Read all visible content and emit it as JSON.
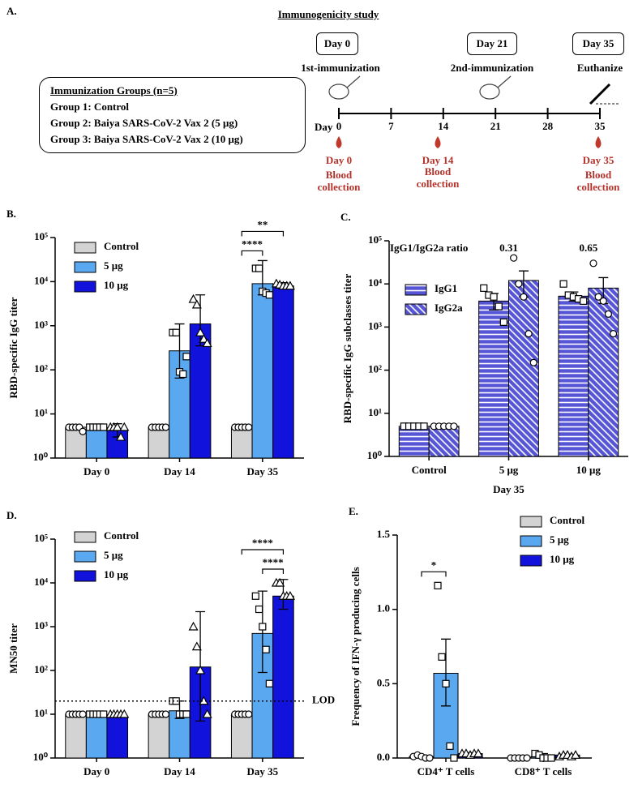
{
  "panel_a": {
    "label": "A.",
    "title": "Immunogenicity study",
    "groups_title": "Immunization Groups (n=5)",
    "groups": [
      "Group 1: Control",
      "Group 2: Baiya SARS-CoV-2 Vax 2 (5 μg)",
      "Group 3: Baiya SARS-CoV-2 Vax 2 (10 μg)"
    ],
    "events": [
      {
        "day": "Day 0",
        "label": "1st-immunization"
      },
      {
        "day": "Day 21",
        "label": "2nd-immunization"
      },
      {
        "day": "Day 35",
        "label": "Euthanize"
      }
    ],
    "timeline_label": "Day",
    "timeline_days": [
      0,
      7,
      14,
      21,
      28,
      35
    ],
    "blood": [
      {
        "day": "Day 0",
        "label": "Blood collection"
      },
      {
        "day": "Day 14",
        "label": "Blood collection"
      },
      {
        "day": "Day 35",
        "label": "Blood collection"
      }
    ]
  },
  "chart_data": [
    {
      "type": "bar",
      "panel_label": "B.",
      "ylabel": "RBD-specific IgG titer",
      "log_scale": true,
      "legend": "upper left",
      "categories": [
        "Day 0",
        "Day 14",
        "Day 35"
      ],
      "ylim": [
        1,
        100000
      ],
      "yticks": [
        {
          "value": 1,
          "label": "10⁰"
        },
        {
          "value": 10,
          "label": "10¹"
        },
        {
          "value": 100,
          "label": "10²"
        },
        {
          "value": 1000,
          "label": "10³"
        },
        {
          "value": 10000,
          "label": "10⁴"
        },
        {
          "value": 100000,
          "label": "10⁵"
        }
      ],
      "series": [
        {
          "name": "Control",
          "color": "#d3d3d3",
          "marker": "circle",
          "values": [
            5,
            5,
            5
          ],
          "error_low": [
            4.5,
            5,
            4.8
          ],
          "error_high": [
            5.5,
            5,
            5.3
          ],
          "points": [
            [
              5,
              5,
              5,
              5,
              4
            ],
            [
              5,
              5,
              5,
              5,
              5
            ],
            [
              5,
              5,
              5,
              5,
              5
            ]
          ]
        },
        {
          "name": "5 μg",
          "color": "#5aa9f0",
          "marker": "square",
          "values": [
            5,
            270,
            9000
          ],
          "error_low": [
            5,
            65,
            5000
          ],
          "error_high": [
            5,
            1100,
            30000
          ],
          "points": [
            [
              5,
              5,
              5,
              5,
              5
            ],
            [
              700,
              700,
              90,
              80,
              200
            ],
            [
              20000,
              20000,
              6000,
              5500,
              5000
            ]
          ]
        },
        {
          "name": "10 μg",
          "color": "#1212dd",
          "marker": "triangle",
          "values": [
            4.5,
            1100,
            8000
          ],
          "error_low": [
            3,
            350,
            7000
          ],
          "error_high": [
            6,
            5000,
            9500
          ],
          "points": [
            [
              5,
              5,
              5,
              3,
              5
            ],
            [
              4000,
              3000,
              700,
              500,
              400
            ],
            [
              9000,
              8500,
              8000,
              8000,
              8000
            ]
          ]
        }
      ],
      "significance": [
        {
          "label": "****",
          "category": "Day 35",
          "from": "Control",
          "to": "5 μg"
        },
        {
          "label": "**",
          "category": "Day 35",
          "from": "Control",
          "to": "10 μg"
        }
      ]
    },
    {
      "type": "bar",
      "panel_label": "C.",
      "ylabel": "RBD-specific IgG subclasses titer",
      "xlabel": "Day 35",
      "log_scale": true,
      "legend": "upper left",
      "categories": [
        "Control",
        "5 μg",
        "10 μg"
      ],
      "ylim": [
        1,
        100000
      ],
      "yticks": [
        {
          "value": 1,
          "label": "10⁰"
        },
        {
          "value": 10,
          "label": "10¹"
        },
        {
          "value": 100,
          "label": "10²"
        },
        {
          "value": 1000,
          "label": "10³"
        },
        {
          "value": 10000,
          "label": "10⁴"
        },
        {
          "value": 100000,
          "label": "10⁵"
        }
      ],
      "ratio_label": "IgG1/IgG2a ratio",
      "ratios": [
        null,
        0.31,
        0.65
      ],
      "series": [
        {
          "name": "IgG1",
          "color": "#5555d5",
          "pattern": "horizontal",
          "marker": "square",
          "values": [
            5,
            4000,
            5200
          ],
          "error_low": [
            5,
            2500,
            4000
          ],
          "error_high": [
            5,
            6000,
            6500
          ],
          "points": [
            [
              5,
              5,
              5,
              5,
              5
            ],
            [
              8000,
              5500,
              5000,
              3000,
              1300
            ],
            [
              10000,
              5500,
              5000,
              4500,
              4000
            ]
          ]
        },
        {
          "name": "IgG2a",
          "color": "#5555d5",
          "pattern": "diagonal",
          "marker": "circle",
          "values": [
            5,
            12000,
            8000
          ],
          "error_low": [
            5,
            5000,
            3500
          ],
          "error_high": [
            5,
            20000,
            14000
          ],
          "points": [
            [
              5,
              5,
              5,
              5,
              5
            ],
            [
              40000,
              10000,
              5000,
              700,
              150
            ],
            [
              30000,
              5000,
              4000,
              2000,
              700
            ]
          ]
        }
      ]
    },
    {
      "type": "bar",
      "panel_label": "D.",
      "ylabel": "MN50 titer",
      "log_scale": true,
      "legend": "upper left",
      "categories": [
        "Day 0",
        "Day 14",
        "Day 35"
      ],
      "ylim": [
        1,
        100000
      ],
      "yticks": [
        {
          "value": 1,
          "label": "10⁰"
        },
        {
          "value": 10,
          "label": "10¹"
        },
        {
          "value": 100,
          "label": "10²"
        },
        {
          "value": 1000,
          "label": "10³"
        },
        {
          "value": 10000,
          "label": "10⁴"
        },
        {
          "value": 100000,
          "label": "10⁵"
        }
      ],
      "lod": {
        "value": 20,
        "label": "LOD"
      },
      "series": [
        {
          "name": "Control",
          "color": "#d3d3d3",
          "marker": "circle",
          "values": [
            10,
            10,
            10
          ],
          "error_low": [
            10,
            10,
            10
          ],
          "error_high": [
            10,
            10,
            11
          ],
          "points": [
            [
              10,
              10,
              10,
              10,
              10
            ],
            [
              10,
              10,
              10,
              10,
              10
            ],
            [
              10,
              10,
              10,
              10,
              10
            ]
          ]
        },
        {
          "name": "5 μg",
          "color": "#5aa9f0",
          "marker": "square",
          "values": [
            10,
            12,
            700
          ],
          "error_low": [
            9,
            8,
            90
          ],
          "error_high": [
            11,
            20,
            6500
          ],
          "points": [
            [
              10,
              10,
              10,
              10,
              10
            ],
            [
              20,
              20,
              10,
              10,
              10
            ],
            [
              5000,
              2500,
              1000,
              300,
              50
            ]
          ]
        },
        {
          "name": "10 μg",
          "color": "#1212dd",
          "marker": "triangle",
          "values": [
            9,
            120,
            5000
          ],
          "error_low": [
            9,
            7,
            2500
          ],
          "error_high": [
            10,
            2200,
            12000
          ],
          "points": [
            [
              10,
              10,
              10,
              10,
              10
            ],
            [
              1000,
              350,
              100,
              20,
              10
            ],
            [
              10000,
              10000,
              5000,
              5000,
              5000
            ]
          ]
        }
      ],
      "significance": [
        {
          "label": "****",
          "category": "Day 35",
          "from": "5 μg",
          "to": "10 μg"
        },
        {
          "label": "****",
          "category": "Day 35",
          "from": "Control",
          "to": "10 μg"
        }
      ]
    },
    {
      "type": "bar",
      "panel_label": "E.",
      "ylabel": "Frequency of IFN-γ producing cells",
      "log_scale": false,
      "legend": "upper right",
      "categories": [
        "CD4⁺ T cells",
        "CD8⁺ T cells"
      ],
      "ylim": [
        0,
        1.5
      ],
      "yticks": [
        {
          "value": 0,
          "label": "0.0"
        },
        {
          "value": 0.5,
          "label": "0.5"
        },
        {
          "value": 1,
          "label": "1.0"
        },
        {
          "value": 1.5,
          "label": "1.5"
        }
      ],
      "series": [
        {
          "name": "Control",
          "color": "#d3d3d3",
          "marker": "circle",
          "values": [
            0.01,
            0
          ],
          "error_low": [
            0.005,
            0
          ],
          "error_high": [
            0.015,
            0.005
          ],
          "points": [
            [
              0.01,
              0.02,
              0.01,
              0,
              0
            ],
            [
              0,
              0,
              0,
              0,
              0
            ]
          ]
        },
        {
          "name": "5 μg",
          "color": "#5aa9f0",
          "marker": "square",
          "values": [
            0.57,
            0.01
          ],
          "error_low": [
            0.35,
            0
          ],
          "error_high": [
            0.8,
            0.03
          ],
          "points": [
            [
              1.16,
              0.68,
              0.5,
              0.08,
              0
            ],
            [
              0.03,
              0.02,
              0,
              0,
              0
            ]
          ]
        },
        {
          "name": "10 μg",
          "color": "#1212dd",
          "marker": "triangle",
          "values": [
            0.03,
            0.02
          ],
          "error_low": [
            0.025,
            0.015
          ],
          "error_high": [
            0.035,
            0.025
          ],
          "points": [
            [
              0.03,
              0.03,
              0.02,
              0.03,
              0.03
            ],
            [
              0.01,
              0.02,
              0.02,
              0.01,
              0.02
            ]
          ]
        }
      ],
      "significance": [
        {
          "label": "*",
          "category": "CD4⁺ T cells",
          "from": "Control",
          "to": "5 μg"
        }
      ]
    }
  ]
}
